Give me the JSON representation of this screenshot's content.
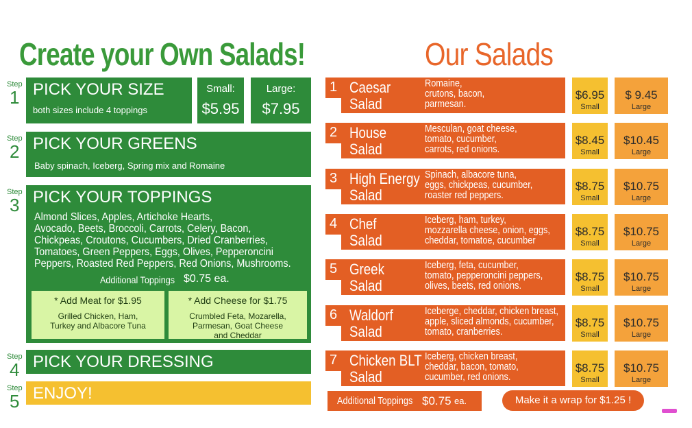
{
  "left": {
    "title": "Create your Own Salads!",
    "steps": [
      {
        "step_label": "Step",
        "number": "1",
        "title": "PICK YOUR SIZE",
        "note": "both sizes include 4 toppings",
        "sizes": [
          {
            "label": "Small:",
            "price": "$5.95"
          },
          {
            "label": "Large:",
            "price": "$7.95"
          }
        ]
      },
      {
        "step_label": "Step",
        "number": "2",
        "title": "PICK YOUR GREENS",
        "note": "Baby spinach, Iceberg, Spring mix and Romaine"
      },
      {
        "step_label": "Step",
        "number": "3",
        "title": "PICK YOUR TOPPINGS",
        "lines": [
          "Almond Slices, Apples, Artichoke Hearts,",
          "Avocado, Beets, Broccoli, Carrots, Celery, Bacon,",
          "Chickpeas, Croutons, Cucumbers, Dried Cranberries,",
          "Tomatoes, Green Peppers, Eggs, Olives, Pepperoncini",
          "Peppers, Roasted Red Peppers, Red Onions, Mushrooms."
        ],
        "additional_label": "Additional Toppings",
        "additional_price": "$0.75 ea.",
        "addons": [
          {
            "title": "* Add Meat for $1.95",
            "lines": [
              "Grilled Chicken, Ham,",
              "Turkey and Albacore Tuna"
            ]
          },
          {
            "title": "* Add Cheese for $1.75",
            "lines": [
              "Crumbled Feta, Mozarella,",
              "Parmesan, Goat Cheese",
              "and Cheddar"
            ]
          }
        ]
      },
      {
        "step_label": "Step",
        "number": "4",
        "title": "PICK YOUR DRESSING"
      },
      {
        "step_label": "Step",
        "number": "5",
        "title": "ENJOY!"
      }
    ]
  },
  "right": {
    "title": "Our Salads",
    "salads": [
      {
        "number": "1",
        "name": [
          "Caesar",
          "Salad"
        ],
        "description": [
          "Romaine,",
          "crutons, bacon,",
          "parmesan."
        ],
        "small_price": "$6.95",
        "small_label": "Small",
        "large_price": "$ 9.45",
        "large_label": "Large"
      },
      {
        "number": "2",
        "name": [
          "House",
          "Salad"
        ],
        "description": [
          "Mesculan, goat cheese,",
          "tomato, cucumber,",
          "carrots, red onions."
        ],
        "small_price": "$8.45",
        "small_label": "Small",
        "large_price": "$10.45",
        "large_label": "Large"
      },
      {
        "number": "3",
        "name": [
          "High Energy",
          "Salad"
        ],
        "description": [
          "Spinach, albacore tuna,",
          "eggs, chickpeas, cucumber,",
          "roaster red peppers."
        ],
        "small_price": "$8.75",
        "small_label": "Small",
        "large_price": "$10.75",
        "large_label": "Large"
      },
      {
        "number": "4",
        "name": [
          "Chef",
          "Salad"
        ],
        "description": [
          "Iceberg, ham, turkey,",
          "mozzarella cheese, onion, eggs,",
          "cheddar, tomatoe, cucumber"
        ],
        "small_price": "$8.75",
        "small_label": "Small",
        "large_price": "$10.75",
        "large_label": "Large"
      },
      {
        "number": "5",
        "name": [
          "Greek",
          "Salad"
        ],
        "description": [
          "Iceberg, feta, cucumber,",
          "tomato, pepperoncini peppers,",
          "olives, beets, red onions."
        ],
        "small_price": "$8.75",
        "small_label": "Small",
        "large_price": "$10.75",
        "large_label": "Large"
      },
      {
        "number": "6",
        "name": [
          "Waldorf",
          "Salad"
        ],
        "description": [
          "Iceberge, cheddar, chicken breast,",
          "apple, sliced almonds, cucumber,",
          "tomato, cranberries."
        ],
        "small_price": "$8.75",
        "small_label": "Small",
        "large_price": "$10.75",
        "large_label": "Large"
      },
      {
        "number": "7",
        "name": [
          "Chicken BLT",
          "Salad"
        ],
        "description": [
          "Iceberg, chicken breast,",
          "cheddar, bacon, tomato,",
          "cucumber, red onions."
        ],
        "small_price": "$8.75",
        "small_label": "Small",
        "large_price": "$10.75",
        "large_label": "Large"
      }
    ],
    "footer": {
      "additional_label": "Additional Toppings",
      "additional_price": "$0.75",
      "additional_unit": "ea.",
      "wrap": "Make it a wrap for $1.25 !"
    }
  }
}
